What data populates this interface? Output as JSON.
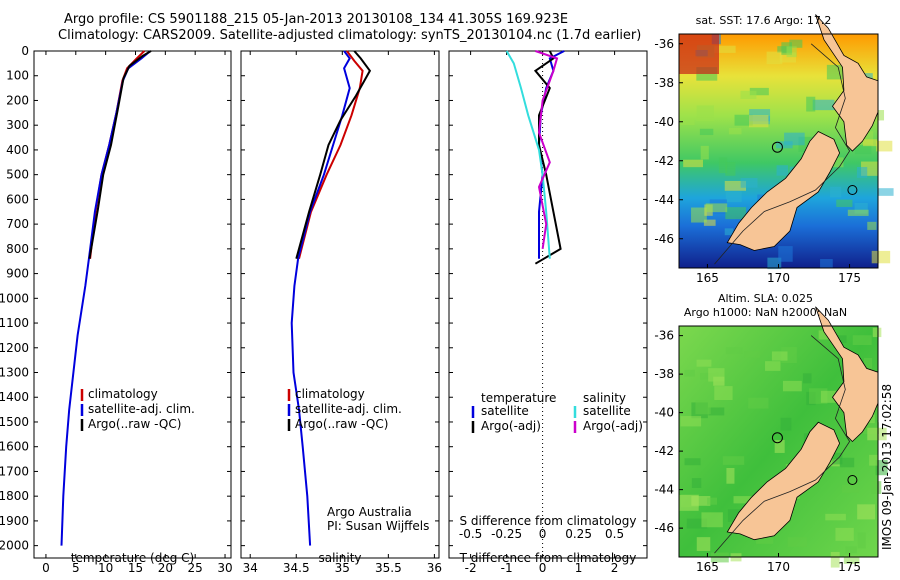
{
  "title": {
    "line1": "Argo profile: CS 5901188_215 05-Jan-2013 20130108_134 41.305S 169.923E",
    "line2": "Climatology: CARS2009. Satellite-adjusted climatology: synTS_20130104.nc (1.7d earlier)"
  },
  "chart_data": [
    {
      "type": "line",
      "panel": "temperature",
      "xlabel": "temperature (deg C)",
      "xlim": [
        -2,
        31
      ],
      "ylim": [
        2050,
        0
      ],
      "xticks": [
        "0",
        "5",
        "10",
        "15",
        "20",
        "25",
        "30"
      ],
      "yticks": [
        "0",
        "100",
        "200",
        "300",
        "400",
        "500",
        "600",
        "700",
        "800",
        "900",
        "1000",
        "1100",
        "1200",
        "1300",
        "1400",
        "1500",
        "1600",
        "1700",
        "1800",
        "1900",
        "2000"
      ],
      "legend": [
        "climatology",
        "satellite-adj. clim.",
        "Argo(..raw -QC)"
      ],
      "series": [
        {
          "name": "climatology",
          "color": "#cc0000",
          "points": [
            [
              16.5,
              0
            ],
            [
              15.2,
              30
            ],
            [
              13.6,
              70
            ],
            [
              12.8,
              120
            ],
            [
              11.8,
              250
            ],
            [
              10.6,
              380
            ],
            [
              9.3,
              500
            ],
            [
              8.3,
              650
            ],
            [
              7.4,
              840
            ]
          ]
        },
        {
          "name": "satellite-adj. clim.",
          "color": "#0000dd",
          "points": [
            [
              17.5,
              0
            ],
            [
              16.0,
              30
            ],
            [
              13.8,
              70
            ],
            [
              12.9,
              120
            ],
            [
              11.8,
              250
            ],
            [
              10.6,
              380
            ],
            [
              9.3,
              500
            ],
            [
              8.2,
              650
            ],
            [
              7.2,
              840
            ],
            [
              6.6,
              950
            ],
            [
              5.3,
              1150
            ],
            [
              4.6,
              1300
            ],
            [
              3.9,
              1450
            ],
            [
              3.4,
              1600
            ],
            [
              2.9,
              1800
            ],
            [
              2.6,
              2000
            ]
          ]
        },
        {
          "name": "Argo(..raw -QC)",
          "color": "#000000",
          "points": [
            [
              17.6,
              0
            ],
            [
              16.2,
              20
            ],
            [
              14.0,
              60
            ],
            [
              13.0,
              110
            ],
            [
              12.0,
              240
            ],
            [
              10.9,
              380
            ],
            [
              9.6,
              500
            ],
            [
              8.7,
              640
            ],
            [
              7.3,
              840
            ]
          ]
        }
      ]
    },
    {
      "type": "line",
      "panel": "salinity",
      "xlabel": "salinity",
      "xlim": [
        33.9,
        36.05
      ],
      "ylim": [
        2050,
        0
      ],
      "xticks": [
        "34",
        "34.5",
        "35",
        "35.5",
        "36"
      ],
      "legend": [
        "climatology",
        "satellite-adj. clim.",
        "Argo(..raw -QC)"
      ],
      "annotation": [
        "Argo Australia",
        "PI: Susan Wijffels"
      ],
      "series": [
        {
          "name": "climatology",
          "color": "#cc0000",
          "points": [
            [
              35.05,
              0
            ],
            [
              35.13,
              40
            ],
            [
              35.22,
              80
            ],
            [
              35.19,
              150
            ],
            [
              35.1,
              260
            ],
            [
              34.98,
              380
            ],
            [
              34.83,
              500
            ],
            [
              34.66,
              650
            ],
            [
              34.53,
              840
            ]
          ]
        },
        {
          "name": "satellite-adj. clim.",
          "color": "#0000dd",
          "points": [
            [
              35.02,
              0
            ],
            [
              35.08,
              30
            ],
            [
              35.02,
              70
            ],
            [
              35.08,
              150
            ],
            [
              35.0,
              260
            ],
            [
              34.9,
              380
            ],
            [
              34.8,
              500
            ],
            [
              34.65,
              650
            ],
            [
              34.52,
              840
            ],
            [
              34.48,
              950
            ],
            [
              34.45,
              1100
            ],
            [
              34.47,
              1300
            ],
            [
              34.53,
              1450
            ],
            [
              34.57,
              1600
            ],
            [
              34.62,
              1800
            ],
            [
              34.65,
              2000
            ]
          ]
        },
        {
          "name": "Argo(..raw -QC)",
          "color": "#000000",
          "points": [
            [
              35.13,
              0
            ],
            [
              35.2,
              30
            ],
            [
              35.3,
              80
            ],
            [
              35.15,
              180
            ],
            [
              34.98,
              280
            ],
            [
              34.85,
              380
            ],
            [
              34.76,
              500
            ],
            [
              34.64,
              650
            ],
            [
              34.5,
              840
            ]
          ]
        }
      ]
    },
    {
      "type": "line",
      "panel": "difference",
      "xlabel": "T difference from climatology",
      "xlabel2": "S difference from climatology",
      "xlim": [
        -2.6,
        2.9
      ],
      "ylim": [
        2050,
        0
      ],
      "xticks": [
        "-2",
        "-1",
        "0",
        "1",
        "2"
      ],
      "xticks2": [
        "-0.5",
        "-0.25",
        "0",
        "0.25",
        "0.5"
      ],
      "legend_titles": [
        "temperature",
        "salinity"
      ],
      "legend": [
        "satellite",
        "Argo(-adj)",
        "satellite",
        "Argo(-adj)"
      ],
      "series": [
        {
          "name": "satellite",
          "group": "temperature",
          "color": "#0000dd",
          "points": [
            [
              0.6,
              0
            ],
            [
              0.2,
              30
            ],
            [
              0.3,
              80
            ],
            [
              0.1,
              150
            ],
            [
              -0.05,
              260
            ],
            [
              -0.1,
              380
            ],
            [
              0.0,
              500
            ],
            [
              -0.1,
              650
            ],
            [
              -0.1,
              840
            ]
          ]
        },
        {
          "name": "Argo(-adj)",
          "group": "temperature",
          "color": "#000000",
          "points": [
            [
              0.2,
              0
            ],
            [
              0.3,
              30
            ],
            [
              -0.2,
              80
            ],
            [
              0.2,
              150
            ],
            [
              -0.1,
              260
            ],
            [
              -0.1,
              380
            ],
            [
              0.1,
              500
            ],
            [
              0.3,
              650
            ],
            [
              0.5,
              800
            ],
            [
              -0.2,
              860
            ]
          ]
        },
        {
          "name": "satellite",
          "group": "salinity",
          "color": "#33dddd",
          "points": [
            [
              -1.0,
              0
            ],
            [
              -0.8,
              50
            ],
            [
              -0.6,
              150
            ],
            [
              -0.4,
              260
            ],
            [
              -0.1,
              400
            ],
            [
              0.0,
              500
            ],
            [
              0.1,
              650
            ],
            [
              0.2,
              840
            ]
          ]
        },
        {
          "name": "Argo(-adj)",
          "group": "salinity",
          "color": "#cc00cc",
          "points": [
            [
              -0.2,
              0
            ],
            [
              0.4,
              30
            ],
            [
              0.3,
              80
            ],
            [
              0.0,
              200
            ],
            [
              -0.1,
              330
            ],
            [
              0.2,
              450
            ],
            [
              -0.1,
              550
            ],
            [
              0.1,
              700
            ],
            [
              0.0,
              800
            ]
          ]
        }
      ]
    },
    {
      "type": "heatmap",
      "panel": "sst-map",
      "title": "sat. SST: 17.6 Argo: 17.2",
      "xlim": [
        163,
        177
      ],
      "ylim": [
        -47.5,
        -35.5
      ],
      "xticks": [
        "165",
        "170",
        "175"
      ],
      "yticks": [
        "-36",
        "-38",
        "-40",
        "-42",
        "-44",
        "-46"
      ],
      "argo_position": [
        169.923,
        -41.305
      ]
    },
    {
      "type": "heatmap",
      "panel": "sla-map",
      "title": "Altim. SLA: 0.025",
      "subtitle": "Argo h1000: NaN h2000: NaN",
      "xlim": [
        163,
        177
      ],
      "ylim": [
        -47.5,
        -35.5
      ],
      "xticks": [
        "165",
        "170",
        "175"
      ],
      "yticks": [
        "-36",
        "-38",
        "-40",
        "-42",
        "-44",
        "-46"
      ],
      "argo_position": [
        169.923,
        -41.305
      ]
    }
  ],
  "side_label": "IMOS 09-Jan-2013 17:02:58"
}
